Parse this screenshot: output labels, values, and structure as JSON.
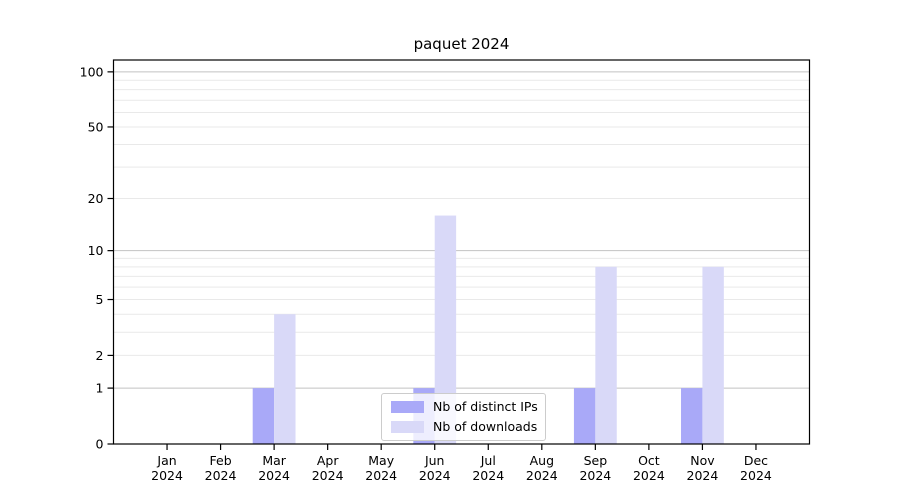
{
  "figure": {
    "background": "#ffffff"
  },
  "chart_data": {
    "type": "bar",
    "title": "paquet 2024",
    "xlabel": "",
    "ylabel": "",
    "categories": [
      "Jan 2024",
      "Feb 2024",
      "Mar 2024",
      "Apr 2024",
      "May 2024",
      "Jun 2024",
      "Jul 2024",
      "Aug 2024",
      "Sep 2024",
      "Oct 2024",
      "Nov 2024",
      "Dec 2024"
    ],
    "series": [
      {
        "name": "Nb of distinct IPs",
        "color": "#a9a9f8",
        "values": [
          0,
          0,
          1,
          0,
          0,
          1,
          0,
          0,
          1,
          0,
          1,
          0
        ]
      },
      {
        "name": "Nb of downloads",
        "color": "#d9d9f8",
        "values": [
          0,
          0,
          4,
          0,
          0,
          16,
          0,
          0,
          8,
          0,
          8,
          0
        ]
      }
    ],
    "yscale": "log1p",
    "ylim": [
      0,
      116
    ],
    "ytick_values": [
      0,
      1,
      2,
      5,
      10,
      20,
      50,
      100
    ],
    "major_grid_values": [
      1,
      10,
      100
    ],
    "minor_grid_values": [
      2,
      3,
      4,
      5,
      6,
      7,
      8,
      9,
      20,
      30,
      40,
      50,
      60,
      70,
      80,
      90
    ],
    "grid": true,
    "legend_position": "lower center",
    "colors": {
      "major_grid": "#c2c2c2",
      "minor_grid": "#e9e9e9",
      "spine": "#000000",
      "tick_text": "#000000"
    }
  }
}
